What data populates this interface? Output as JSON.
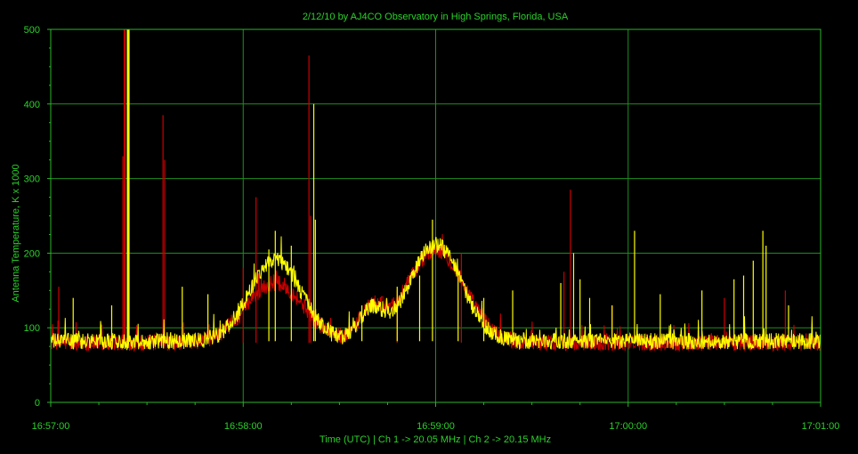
{
  "chart_data": {
    "type": "line",
    "title": "2/12/10  by  AJ4CO Observatory  in  High Springs, Florida, USA",
    "xlabel": "Time (UTC)  |  Ch 1 -> 20.05 MHz  |  Ch 2 -> 20.15 MHz",
    "ylabel": "Antenna Temperature, K x 1000",
    "xlim": [
      "16:57:00",
      "17:01:00"
    ],
    "ylim": [
      0,
      500
    ],
    "x_ticks": [
      "16:57:00",
      "16:58:00",
      "16:59:00",
      "17:00:00",
      "17:01:00"
    ],
    "y_ticks": [
      "0",
      "100",
      "200",
      "300",
      "400",
      "500"
    ],
    "grid": true,
    "colors": {
      "background": "#000000",
      "grid": "#1f8f1f",
      "text": "#2bd12b",
      "ch1": "#cc0000",
      "ch2": "#ffff00"
    },
    "series": [
      {
        "name": "Ch 1 -> 20.05 MHz",
        "color": "#cc0000",
        "baseline": 80,
        "bumps": [
          {
            "t": 70,
            "h": 80,
            "w": 9
          },
          {
            "t": 100,
            "h": 40,
            "w": 4
          },
          {
            "t": 120,
            "h": 125,
            "w": 9
          }
        ],
        "spikes": [
          {
            "t": 2.5,
            "v": 155
          },
          {
            "t": 22.5,
            "v": 330
          },
          {
            "t": 23,
            "v": 500
          },
          {
            "t": 35,
            "v": 385
          },
          {
            "t": 35.5,
            "v": 325
          },
          {
            "t": 60,
            "v": 180
          },
          {
            "t": 64,
            "v": 275
          },
          {
            "t": 80.5,
            "v": 465
          },
          {
            "t": 81,
            "v": 250
          },
          {
            "t": 108,
            "v": 150
          },
          {
            "t": 128,
            "v": 200
          },
          {
            "t": 160,
            "v": 175
          },
          {
            "t": 162,
            "v": 285
          },
          {
            "t": 175,
            "v": 130
          },
          {
            "t": 210,
            "v": 140
          },
          {
            "t": 229,
            "v": 150
          }
        ]
      },
      {
        "name": "Ch 2 -> 20.15 MHz",
        "color": "#ffff00",
        "baseline": 82,
        "bumps": [
          {
            "t": 70,
            "h": 110,
            "w": 8
          },
          {
            "t": 100,
            "h": 40,
            "w": 4
          },
          {
            "t": 120,
            "h": 130,
            "w": 8
          }
        ],
        "spikes": [
          {
            "t": 7,
            "v": 140
          },
          {
            "t": 19,
            "v": 130
          },
          {
            "t": 24,
            "v": 500
          },
          {
            "t": 24.3,
            "v": 500
          },
          {
            "t": 41,
            "v": 155
          },
          {
            "t": 49,
            "v": 145
          },
          {
            "t": 68,
            "v": 205
          },
          {
            "t": 70,
            "v": 230
          },
          {
            "t": 75,
            "v": 210
          },
          {
            "t": 82,
            "v": 400
          },
          {
            "t": 82.5,
            "v": 245
          },
          {
            "t": 97,
            "v": 130
          },
          {
            "t": 108,
            "v": 155
          },
          {
            "t": 115,
            "v": 170
          },
          {
            "t": 119,
            "v": 245
          },
          {
            "t": 127,
            "v": 175
          },
          {
            "t": 135,
            "v": 140
          },
          {
            "t": 144,
            "v": 150
          },
          {
            "t": 159,
            "v": 160
          },
          {
            "t": 163,
            "v": 200
          },
          {
            "t": 165,
            "v": 165
          },
          {
            "t": 168,
            "v": 140
          },
          {
            "t": 175,
            "v": 130
          },
          {
            "t": 182,
            "v": 230
          },
          {
            "t": 190,
            "v": 145
          },
          {
            "t": 203,
            "v": 150
          },
          {
            "t": 213,
            "v": 165
          },
          {
            "t": 216,
            "v": 170
          },
          {
            "t": 219,
            "v": 190
          },
          {
            "t": 222,
            "v": 230
          },
          {
            "t": 223,
            "v": 210
          },
          {
            "t": 230,
            "v": 130
          }
        ]
      }
    ]
  }
}
